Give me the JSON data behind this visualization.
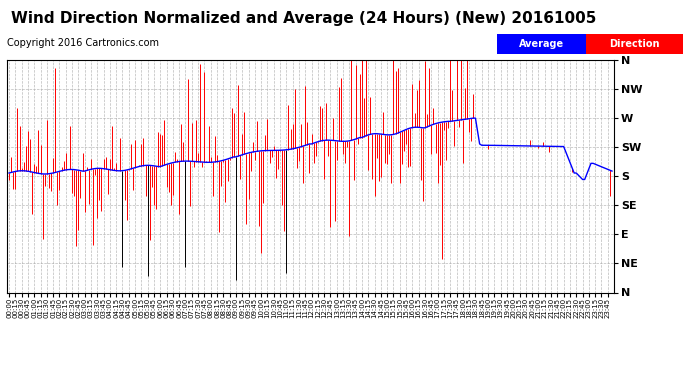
{
  "title": "Wind Direction Normalized and Average (24 Hours) (New) 20161005",
  "copyright": "Copyright 2016 Cartronics.com",
  "legend_labels": [
    "Average",
    "Direction"
  ],
  "legend_colors": [
    "#0000ff",
    "#ff0000"
  ],
  "ytick_labels": [
    "N",
    "NW",
    "W",
    "SW",
    "S",
    "SE",
    "E",
    "NE",
    "N"
  ],
  "ytick_values": [
    360,
    315,
    270,
    225,
    180,
    135,
    90,
    45,
    0
  ],
  "ymin": 0,
  "ymax": 360,
  "bg_color": "#ffffff",
  "grid_color": "#aaaaaa",
  "title_fontsize": 11,
  "copyright_fontsize": 7,
  "axis_label_fontsize": 8,
  "n_points": 288,
  "seed": 12345
}
